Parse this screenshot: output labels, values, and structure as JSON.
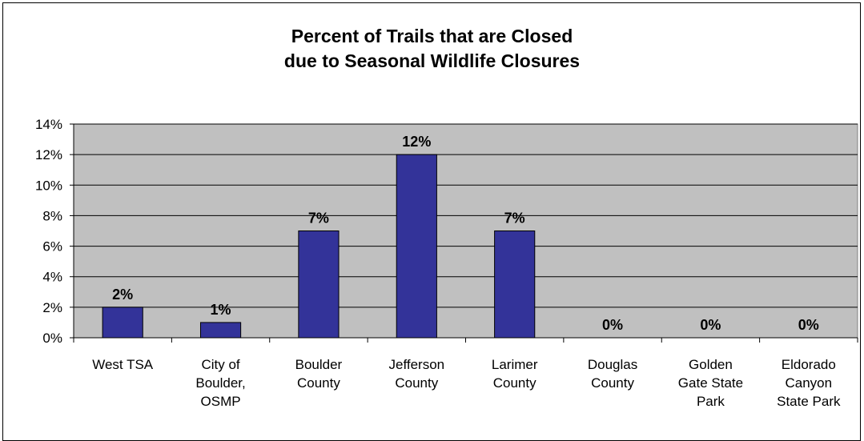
{
  "chart_data": {
    "type": "bar",
    "title_line1": "Percent of Trails that are Closed",
    "title_line2": "due to Seasonal Wildlife Closures",
    "xlabel": "",
    "ylabel": "",
    "ylim": [
      0,
      14
    ],
    "y_ticks": [
      0,
      2,
      4,
      6,
      8,
      10,
      12,
      14
    ],
    "y_tick_suffix": "%",
    "grid": true,
    "categories": [
      [
        "West TSA"
      ],
      [
        "City of",
        "Boulder,",
        "OSMP"
      ],
      [
        "Boulder",
        "County"
      ],
      [
        "Jefferson",
        "County"
      ],
      [
        "Larimer",
        "County"
      ],
      [
        "Douglas",
        "County"
      ],
      [
        "Golden",
        "Gate State",
        "Park"
      ],
      [
        "Eldorado",
        "Canyon",
        "State Park"
      ]
    ],
    "values": [
      2,
      1,
      7,
      12,
      7,
      0,
      0,
      0
    ],
    "data_labels": [
      "2%",
      "1%",
      "7%",
      "12%",
      "7%",
      "0%",
      "0%",
      "0%"
    ],
    "colors": {
      "bar": "#333399",
      "plot_background": "#c0c0c0",
      "gridline": "#000000"
    }
  }
}
